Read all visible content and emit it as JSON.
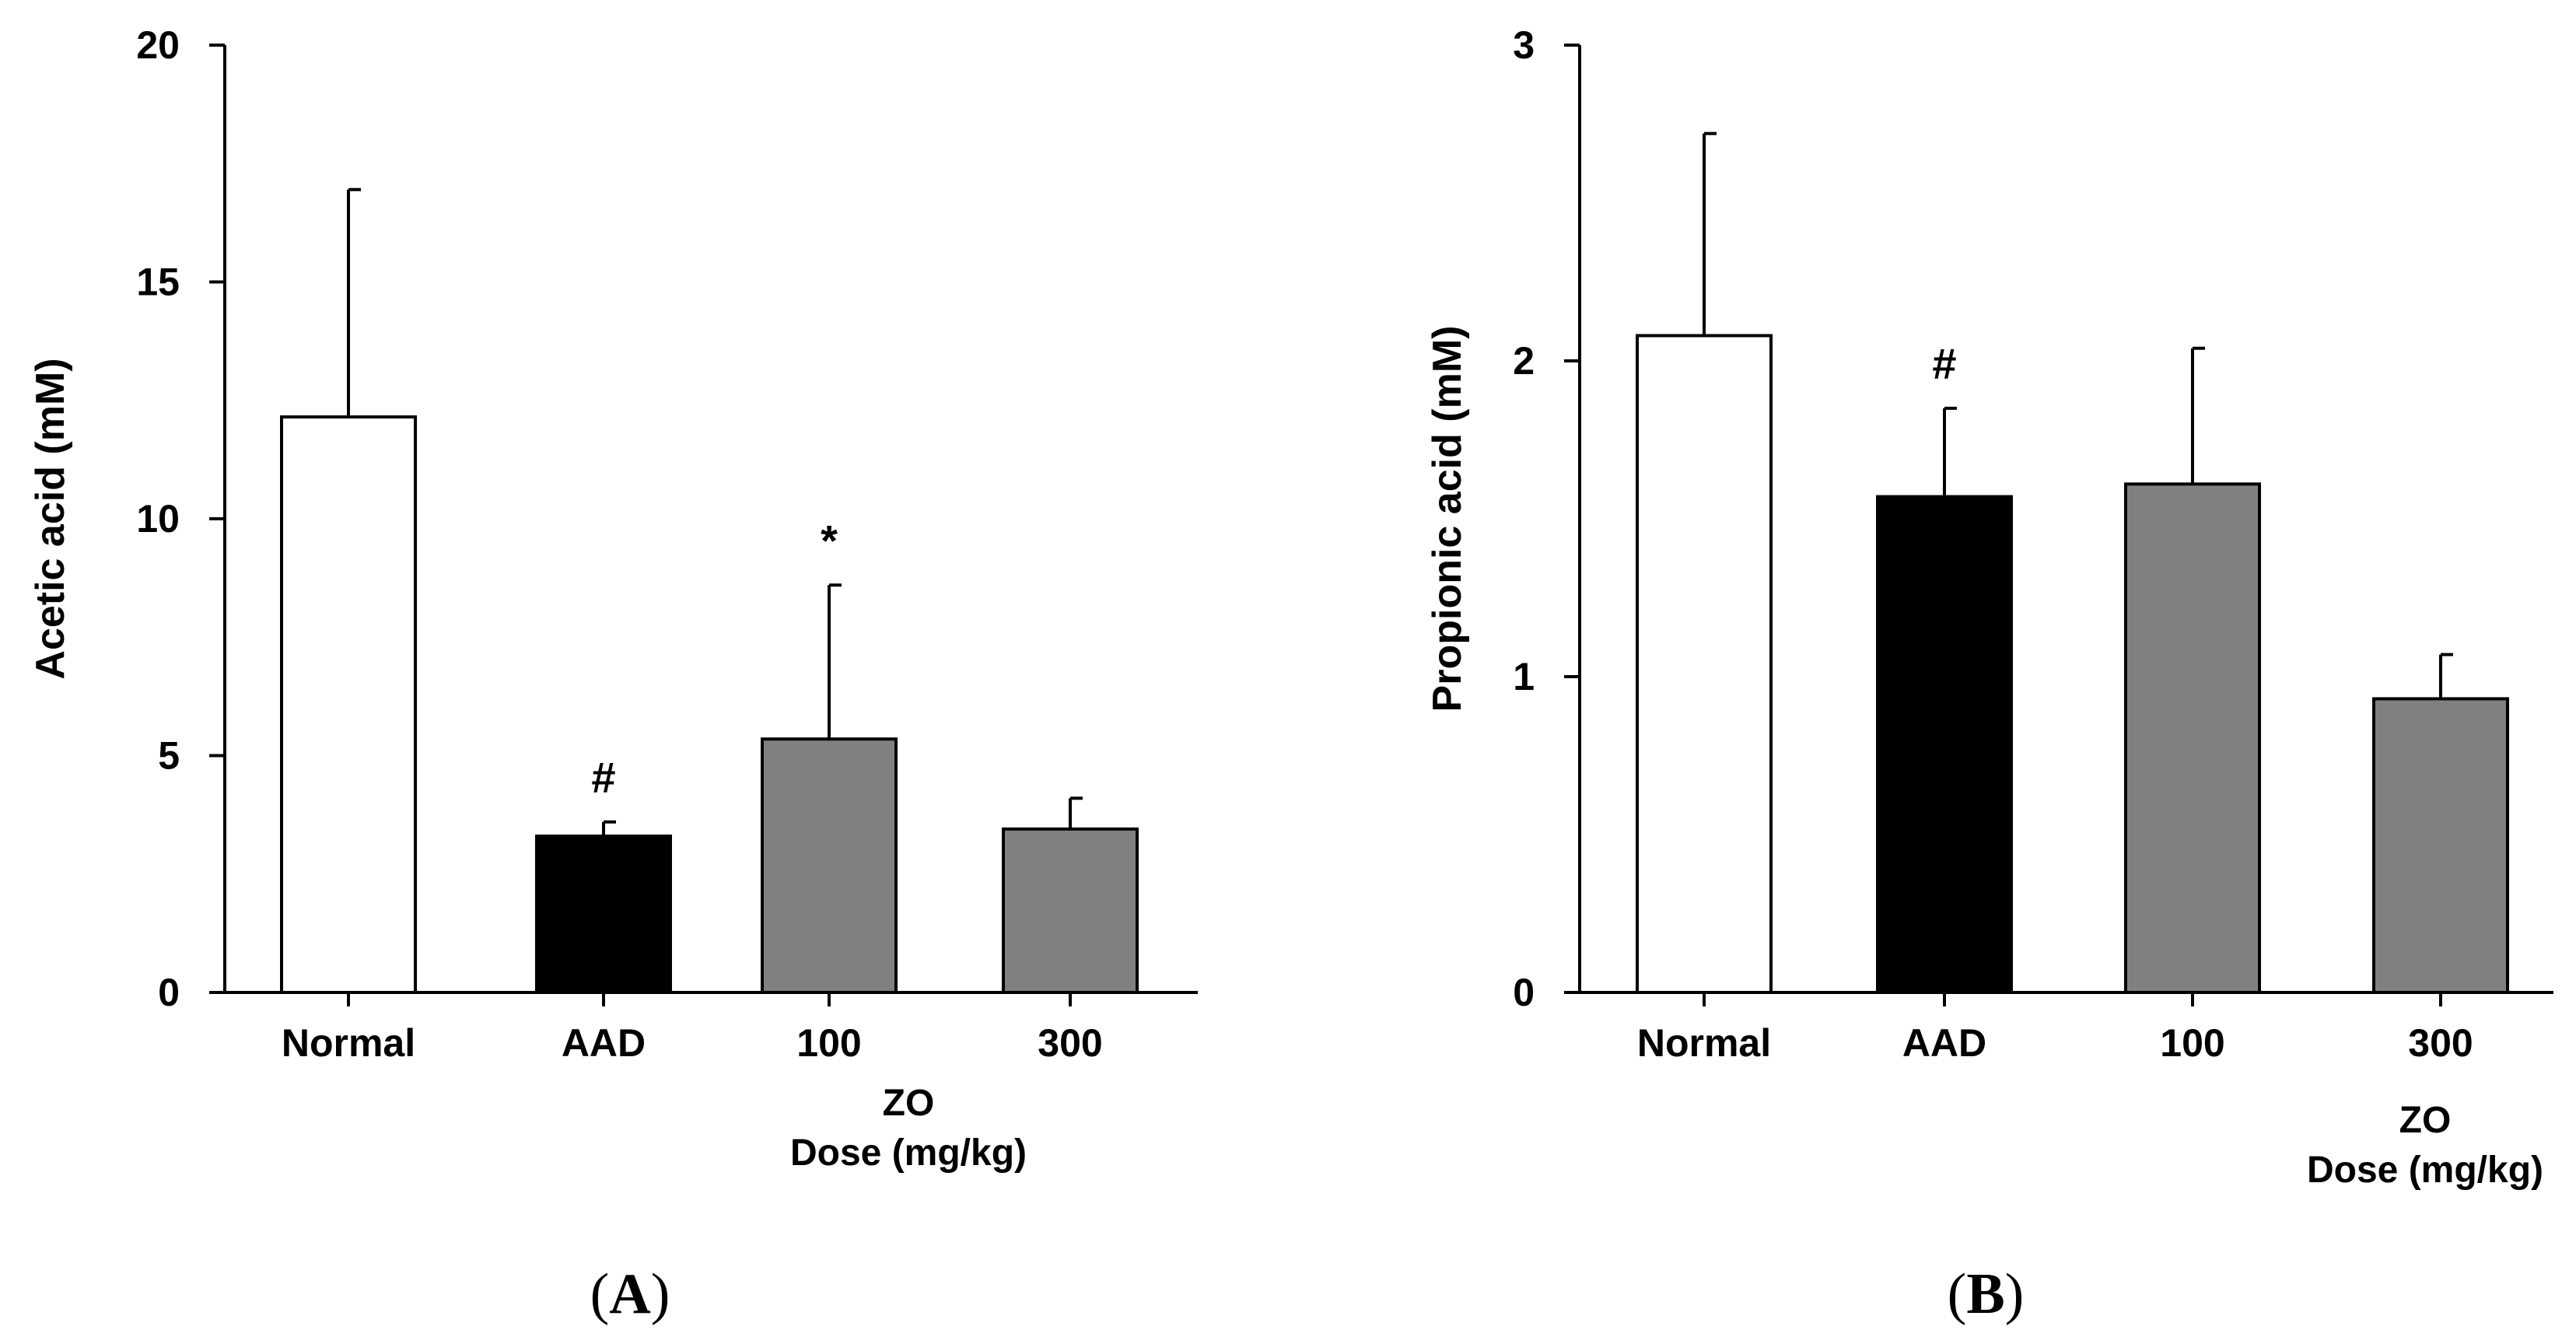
{
  "chart_data": [
    {
      "type": "bar",
      "panel": "A",
      "ylabel": "Acetic acid (mM)",
      "ylim": [
        0,
        20
      ],
      "yticks": [
        0,
        5,
        10,
        15,
        20
      ],
      "categories": [
        "Normal",
        "AAD",
        "100",
        "300"
      ],
      "values": [
        12.15,
        3.3,
        5.35,
        3.45
      ],
      "errors": [
        4.8,
        0.3,
        3.25,
        0.65
      ],
      "annotations": [
        "",
        "#",
        "*",
        ""
      ],
      "bar_colors": [
        "#ffffff",
        "#000000",
        "#808080",
        "#808080"
      ],
      "xnote": [
        "ZO",
        "Dose (mg/kg)"
      ]
    },
    {
      "type": "bar",
      "panel": "B",
      "ylabel": "Propionic acid (mM)",
      "ylim": [
        0,
        3
      ],
      "yticks": [
        0,
        1,
        2,
        3
      ],
      "categories": [
        "Normal",
        "AAD",
        "100",
        "300"
      ],
      "values": [
        2.08,
        1.57,
        1.61,
        0.93
      ],
      "errors": [
        0.64,
        0.28,
        0.43,
        0.14
      ],
      "annotations": [
        "",
        "#",
        "",
        ""
      ],
      "bar_colors": [
        "#ffffff",
        "#000000",
        "#808080",
        "#808080"
      ],
      "xnote": [
        "ZO",
        "Dose (mg/kg)"
      ]
    }
  ]
}
